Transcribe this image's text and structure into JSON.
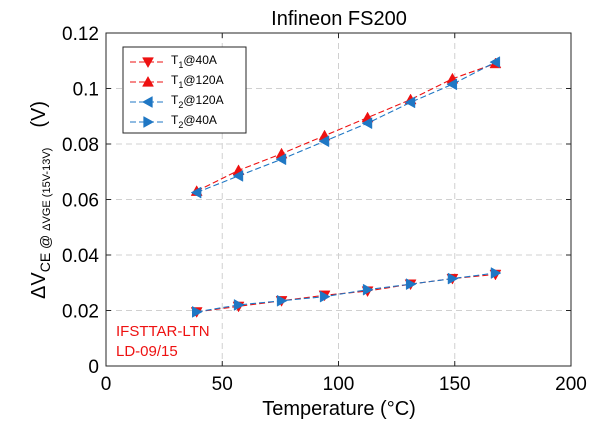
{
  "chart_data": {
    "type": "line",
    "title": "Infineon FS200",
    "xlabel": "Temperature (°C)",
    "ylabel": {
      "delta": "Δ",
      "main": "V",
      "sub1": "CE @ ",
      "delta2": "Δ",
      "sub2": "VGE (15V-13V)",
      "unit": "(V)"
    },
    "xlim": [
      0,
      200
    ],
    "ylim": [
      0,
      0.12
    ],
    "x_ticks": [
      0,
      50,
      100,
      150,
      200
    ],
    "x_tick_labels": [
      "0",
      "50",
      "100",
      "150",
      "200"
    ],
    "y_ticks": [
      0,
      0.02,
      0.04,
      0.06,
      0.08,
      0.1,
      0.12
    ],
    "y_tick_labels": [
      "0",
      "0.02",
      "0.04",
      "0.06",
      "0.08",
      "0.1",
      "0.12"
    ],
    "grid": true,
    "legend_position": "top-left",
    "x": [
      39,
      57,
      75.5,
      94,
      112.5,
      131,
      149,
      167.5
    ],
    "series": [
      {
        "name": "T1@40A",
        "legend": {
          "main": "T",
          "sub": "1",
          "rest": "@40A"
        },
        "color": "#ee1111",
        "marker": "triangle-down",
        "values": [
          0.0195,
          0.0215,
          0.0235,
          0.0255,
          0.027,
          0.0295,
          0.0315,
          0.033
        ]
      },
      {
        "name": "T1@120A",
        "legend": {
          "main": "T",
          "sub": "1",
          "rest": "@120A"
        },
        "color": "#ee1111",
        "marker": "triangle-up",
        "values": [
          0.063,
          0.0705,
          0.0765,
          0.083,
          0.0895,
          0.096,
          0.1035,
          0.109
        ]
      },
      {
        "name": "T2@120A",
        "legend": {
          "main": "T",
          "sub": "2",
          "rest": "@120A"
        },
        "color": "#1f77c4",
        "marker": "triangle-left",
        "values": [
          0.0625,
          0.0685,
          0.0745,
          0.081,
          0.0875,
          0.095,
          0.1015,
          0.1095
        ]
      },
      {
        "name": "T2@40A",
        "legend": {
          "main": "T",
          "sub": "2",
          "rest": "@40A"
        },
        "color": "#1f77c4",
        "marker": "triangle-right",
        "values": [
          0.0195,
          0.022,
          0.0235,
          0.025,
          0.0275,
          0.0295,
          0.0315,
          0.0335
        ]
      }
    ],
    "annotation": [
      "IFSTTAR-LTN",
      "LD-09/15"
    ],
    "annotation_color": "#ee1111"
  }
}
